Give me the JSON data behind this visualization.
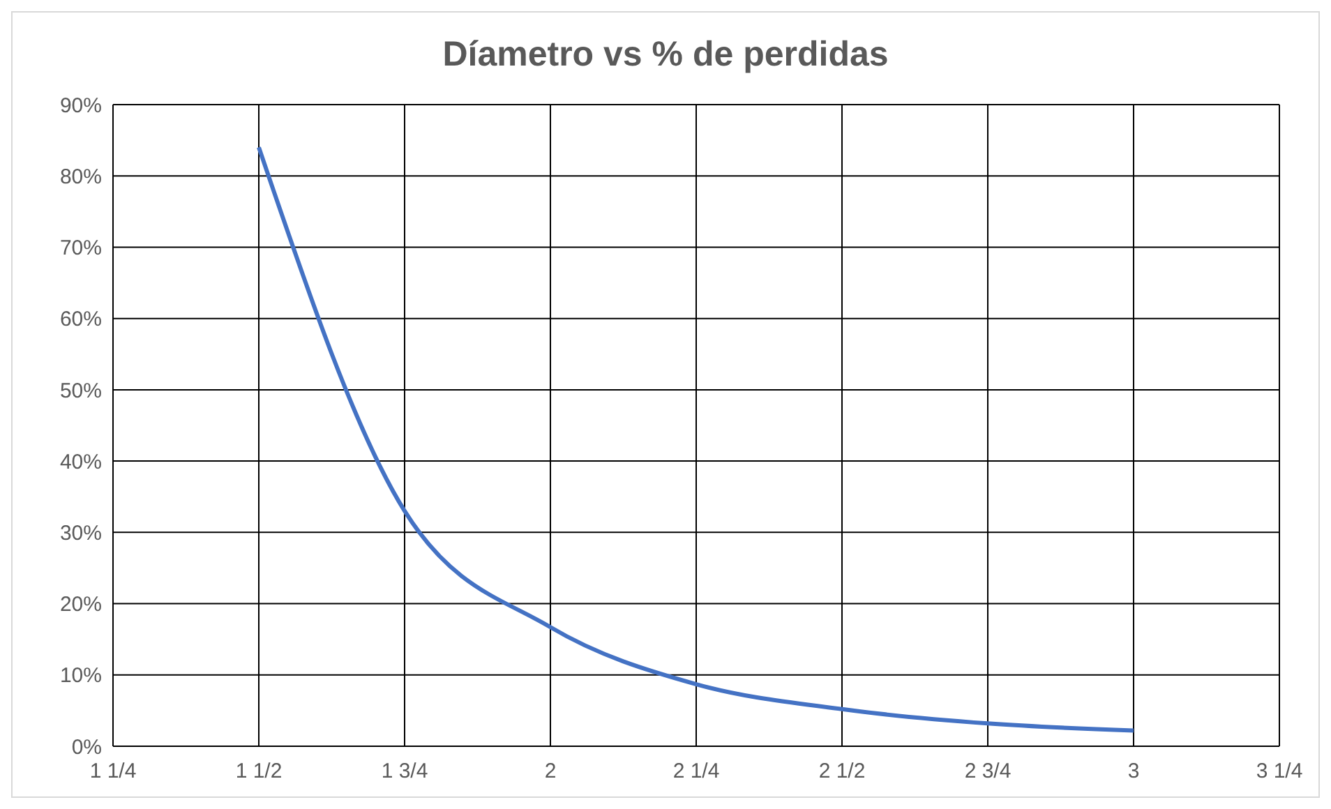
{
  "chart_data": {
    "type": "line",
    "title": "Díametro vs % de perdidas",
    "x": [
      1.5,
      1.75,
      2,
      2.25,
      2.5,
      2.75,
      3
    ],
    "series": [
      {
        "color": "#4472c4",
        "values": [
          84,
          33,
          16.7,
          8.7,
          5.2,
          3.2,
          2.2
        ]
      }
    ],
    "xlim": [
      1.25,
      3.25
    ],
    "xticks": [
      {
        "value": 1.25,
        "label": "1 1/4"
      },
      {
        "value": 1.5,
        "label": "1 1/2"
      },
      {
        "value": 1.75,
        "label": "1 3/4"
      },
      2,
      {
        "value": 2.25,
        "label": "2 1/4"
      },
      {
        "value": 2.5,
        "label": "2 1/2"
      },
      {
        "value": 2.75,
        "label": "2 3/4"
      },
      3,
      {
        "value": 3.25,
        "label": "3 1/4"
      }
    ],
    "ylim": [
      0,
      90
    ],
    "yticks": [
      {
        "value": 0,
        "label": "0%"
      },
      {
        "value": 10,
        "label": "10%"
      },
      {
        "value": 20,
        "label": "20%"
      },
      {
        "value": 30,
        "label": "30%"
      },
      {
        "value": 40,
        "label": "40%"
      },
      {
        "value": 50,
        "label": "50%"
      },
      {
        "value": 60,
        "label": "60%"
      },
      {
        "value": 70,
        "label": "70%"
      },
      {
        "value": 80,
        "label": "80%"
      },
      {
        "value": 90,
        "label": "90%"
      }
    ],
    "grid": true,
    "marker": "none",
    "line_style": "solid"
  }
}
